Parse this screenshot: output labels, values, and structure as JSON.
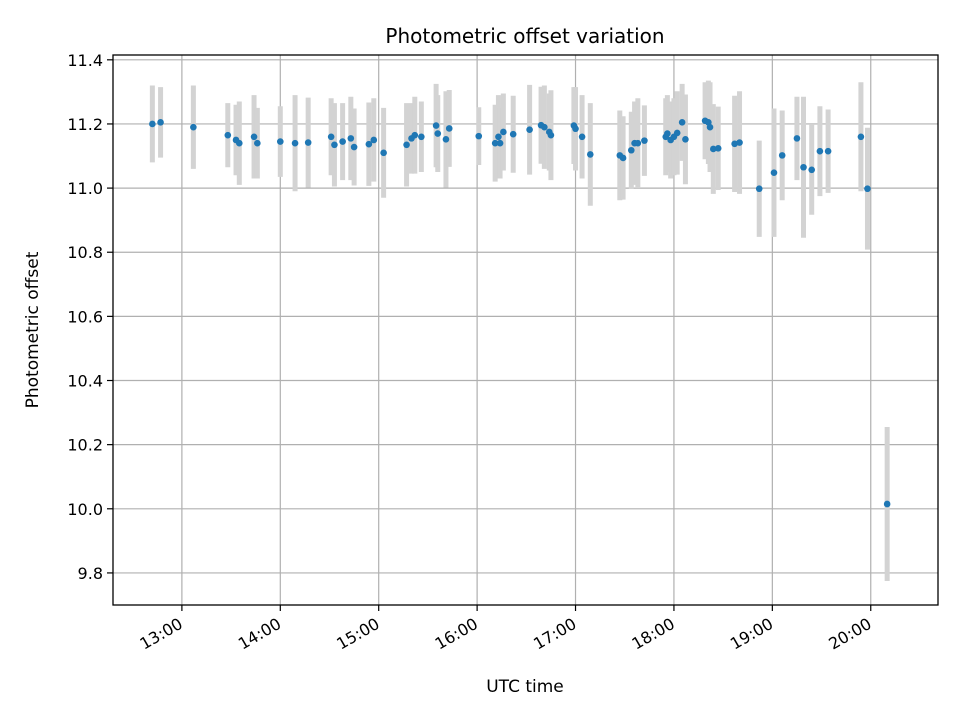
{
  "chart_data": {
    "type": "scatter",
    "title": "Photometric offset variation",
    "xlabel": "UTC time",
    "ylabel": "Photometric offset",
    "xlim": [
      "12:18",
      "20:41"
    ],
    "ylim": [
      9.7,
      11.415
    ],
    "grid": true,
    "x_ticks": [
      "13:00",
      "14:00",
      "15:00",
      "16:00",
      "17:00",
      "18:00",
      "19:00",
      "20:00"
    ],
    "y_ticks": [
      "9.8",
      "10.0",
      "10.2",
      "10.4",
      "10.6",
      "10.8",
      "11.0",
      "11.2",
      "11.4"
    ],
    "colors": {
      "points": "#1f77b4",
      "errorbars": "#d3d3d3",
      "grid": "#b0b0b0"
    },
    "series": [
      {
        "x": [
          "12:42",
          "12:47",
          "13:07",
          "13:28",
          "13:33",
          "13:35",
          "13:44",
          "13:46",
          "14:00",
          "14:09",
          "14:17",
          "14:31",
          "14:33",
          "14:38",
          "14:43",
          "14:45",
          "14:54",
          "14:57",
          "15:03",
          "15:17",
          "15:20",
          "15:22",
          "15:26",
          "15:35",
          "15:36",
          "15:41",
          "15:43",
          "16:01",
          "16:11",
          "16:13",
          "16:14",
          "16:16",
          "16:22",
          "16:32",
          "16:39",
          "16:41",
          "16:44",
          "16:45",
          "16:59",
          "17:00",
          "17:04",
          "17:09",
          "17:27",
          "17:29",
          "17:34",
          "17:36",
          "17:38",
          "17:42",
          "17:55",
          "17:56",
          "17:58",
          "18:00",
          "18:02",
          "18:05",
          "18:07",
          "18:19",
          "18:21",
          "18:22",
          "18:24",
          "18:27",
          "18:37",
          "18:40",
          "18:52",
          "19:01",
          "19:06",
          "19:15",
          "19:19",
          "19:24",
          "19:29",
          "19:34"
        ],
        "y": [
          11.2,
          11.205,
          11.19,
          11.165,
          11.15,
          11.14,
          11.16,
          11.14,
          11.145,
          11.14,
          11.142,
          11.16,
          11.135,
          11.145,
          11.155,
          11.128,
          11.137,
          11.15,
          11.11,
          11.135,
          11.155,
          11.165,
          11.16,
          11.195,
          11.17,
          11.152,
          11.186,
          11.162,
          11.14,
          11.16,
          11.14,
          11.175,
          11.168,
          11.182,
          11.196,
          11.19,
          11.175,
          11.165,
          11.195,
          11.185,
          11.16,
          11.105,
          11.102,
          11.094,
          11.118,
          11.14,
          11.14,
          11.148,
          11.16,
          11.17,
          11.15,
          11.16,
          11.172,
          11.205,
          11.152,
          11.21,
          11.205,
          11.19,
          11.122,
          11.124,
          11.138,
          11.142,
          10.998,
          11.048,
          11.102,
          11.155,
          11.065,
          11.057,
          11.115,
          11.115
        ],
        "yerr": [
          0.12,
          0.11,
          0.13,
          0.1,
          0.11,
          0.13,
          0.13,
          0.11,
          0.11,
          0.15,
          0.14,
          0.12,
          0.13,
          0.12,
          0.13,
          0.12,
          0.13,
          0.13,
          0.14,
          0.13,
          0.11,
          0.12,
          0.11,
          0.13,
          0.12,
          0.15,
          0.12,
          0.09,
          0.12,
          0.13,
          0.11,
          0.12,
          0.12,
          0.14,
          0.12,
          0.13,
          0.12,
          0.14,
          0.12,
          0.13,
          0.13,
          0.16,
          0.14,
          0.13,
          0.12,
          0.13,
          0.14,
          0.11,
          0.12,
          0.12,
          0.12,
          0.12,
          0.13,
          0.12,
          0.14,
          0.12,
          0.13,
          0.14,
          0.14,
          0.13,
          0.15,
          0.16,
          0.15,
          0.2,
          0.14,
          0.13,
          0.22,
          0.14,
          0.14,
          0.13
        ]
      },
      {
        "x": [
          "19:54",
          "19:58",
          "20:10"
        ],
        "y": [
          11.16,
          10.998,
          10.015
        ],
        "yerr": [
          0.17,
          0.19,
          0.24
        ]
      }
    ]
  }
}
